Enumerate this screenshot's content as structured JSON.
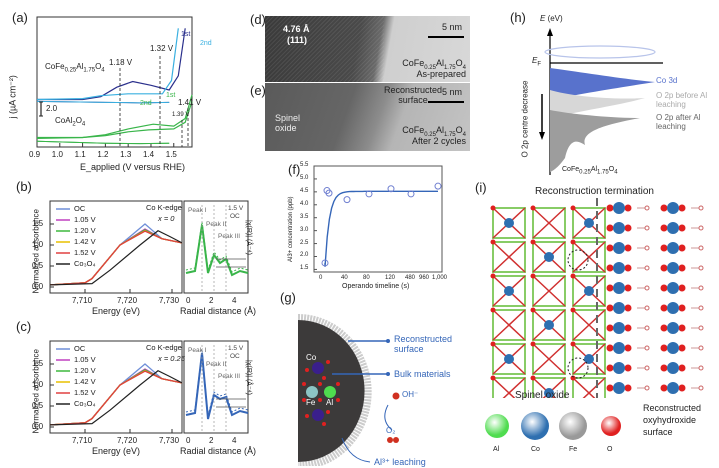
{
  "panels": {
    "a": {
      "label": "(a)",
      "ylabel": "j (µA cm⁻²)",
      "xlabel": "E_applied (V versus RHE)",
      "scale_bar": "2.0",
      "x_ticks": [
        "0.9",
        "1.0",
        "1.1",
        "1.2",
        "1.3",
        "1.4",
        "1.5"
      ],
      "sample_top": "CoFe0.25Al1.75O4",
      "sample_bottom": "CoAl2O4",
      "annotations": [
        "1.18 V",
        "1.32 V",
        "1.39 V",
        "1.41 V"
      ],
      "cycle_labels": [
        "1st",
        "2nd",
        "1st",
        "2nd"
      ]
    },
    "b": {
      "label": "(b)",
      "ylabel": "Normalized adsorbance",
      "xlabel": "Energy (eV)",
      "edge": "Co K-edge",
      "x_value": "x = 0",
      "legend": [
        "OC",
        "1.05 V",
        "1.20 V",
        "1.42 V",
        "1.52 V",
        "Co3O4"
      ],
      "y_ticks": [
        "0.0",
        "0.5",
        "1.0",
        "1.5"
      ],
      "x_ticks": [
        "7,710",
        "7,720",
        "7,730"
      ],
      "inset": {
        "legend": [
          "1.5 V",
          "OC"
        ],
        "peaks": [
          "Peak I",
          "Peak II",
          "Peak III"
        ],
        "xlabel": "Radial distance (Å)",
        "ylabel": "|χ(R)| (Å⁻⁴)",
        "x_ticks": [
          "0",
          "2",
          "4"
        ]
      }
    },
    "c": {
      "label": "(c)",
      "ylabel": "Normalized adsorbance",
      "xlabel": "Energy (eV)",
      "edge": "Co K-edge",
      "x_value": "x = 0.25",
      "legend": [
        "OC",
        "1.05 V",
        "1.20 V",
        "1.42 V",
        "1.52 V",
        "Co3O4"
      ],
      "y_ticks": [
        "0.0",
        "0.5",
        "1.0",
        "1.5"
      ],
      "x_ticks": [
        "7,710",
        "7,720",
        "7,730"
      ],
      "inset": {
        "legend": [
          "1.5 V",
          "OC"
        ],
        "peaks": [
          "Peak I",
          "Peak II",
          "Peak III"
        ],
        "xlabel": "Radial distance (Å)",
        "ylabel": "|χ(R)| (Å⁻⁴)",
        "x_ticks": [
          "0",
          "2",
          "4"
        ]
      }
    },
    "d": {
      "label": "(d)",
      "spacing": "4.76 Å",
      "plane": "(111)",
      "scale": "5 nm",
      "sample": "CoFe0.25Al1.75O4",
      "state": "As-prepared"
    },
    "e": {
      "label": "(e)",
      "region_a": "Spinel oxide",
      "region_b": "Reconstructed surface",
      "scale": "5 nm",
      "sample": "CoFe0.25Al1.75O4",
      "state": "After 2 cycles"
    },
    "g": {
      "label": "(g)",
      "callouts": [
        "Reconstructed surface",
        "Bulk materials",
        "OH⁻",
        "O₂",
        "Al³⁺ leaching"
      ],
      "atoms": [
        "Co",
        "Fe",
        "Al"
      ]
    },
    "h": {
      "label": "(h)",
      "yaxis": "E (eV)",
      "fermi": "E_F",
      "side_label": "O 2p centre decrease",
      "bands": [
        "Co 3d",
        "O 2p before Al leaching",
        "O 2p after Al leaching"
      ],
      "sample": "CoFe0.25Al1.75O4"
    },
    "i": {
      "label": "(i)",
      "title": "Reconstruction termination",
      "left": "Spinel oxide",
      "right": "Reconstructed oxyhydroxide surface",
      "legend": [
        "Al",
        "Co",
        "Fe",
        "O"
      ],
      "vacancy": "V"
    }
  },
  "colors": {
    "oc": "#6f8fd8",
    "v105": "#c040c0",
    "v120": "#3db83d",
    "v142": "#e8c000",
    "v152": "#e04040",
    "co3o4": "#222222",
    "navy": "#2a2f8c",
    "cyan": "#3ab0e0",
    "green": "#39b54a",
    "blue": "#3566b8"
  },
  "chart_data": [
    {
      "type": "line",
      "title": "(a) Cyclic voltammetry",
      "xlabel": "E_applied (V versus RHE)",
      "ylabel": "j (µA cm⁻²)",
      "xlim": [
        0.9,
        1.58
      ],
      "series": [
        {
          "name": "CoFe0.25Al1.75O4 1st",
          "x": [
            0.9,
            1.1,
            1.18,
            1.25,
            1.32,
            1.4,
            1.48,
            1.52,
            1.55
          ],
          "y": [
            5.0,
            5.0,
            5.3,
            6.3,
            6.9,
            6.5,
            6.0,
            7.5,
            12.5
          ]
        },
        {
          "name": "CoFe0.25Al1.75O4 2nd",
          "x": [
            0.9,
            1.1,
            1.18,
            1.3,
            1.45,
            1.49,
            1.52
          ],
          "y": [
            5.0,
            5.1,
            5.4,
            5.6,
            5.6,
            7.0,
            12.5
          ]
        },
        {
          "name": "CoAl2O4 1st",
          "x": [
            0.9,
            1.1,
            1.2,
            1.3,
            1.41,
            1.5,
            1.55,
            1.58
          ],
          "y": [
            1.0,
            1.0,
            1.3,
            1.9,
            2.4,
            2.2,
            3.0,
            5.5
          ]
        },
        {
          "name": "CoAl2O4 2nd",
          "x": [
            0.9,
            1.1,
            1.2,
            1.3,
            1.39,
            1.5,
            1.55,
            1.58
          ],
          "y": [
            0.9,
            1.0,
            1.2,
            1.6,
            1.8,
            1.9,
            2.6,
            4.8
          ]
        }
      ],
      "annotations": [
        "1.18 V",
        "1.32 V",
        "1.39 V",
        "1.41 V"
      ]
    },
    {
      "type": "line",
      "title": "(f) Al3+ concentration",
      "xlabel": "Operando timeline (s)",
      "ylabel": "Al3+ concentration (ppb)",
      "ylim": [
        1.4,
        5.5
      ],
      "x_ticks": [
        "0",
        "40",
        "80",
        "120",
        "480",
        "960",
        "1,000"
      ],
      "y_ticks": [
        "1.5",
        "2.0",
        "2.5",
        "3.0",
        "3.5",
        "4.0",
        "4.5",
        "5.0",
        "5.5"
      ],
      "series": [
        {
          "name": "measured",
          "x": [
            "0",
            "5",
            "10",
            "40",
            "80",
            "120",
            "480",
            "1,000"
          ],
          "y": [
            1.75,
            4.55,
            4.45,
            4.2,
            4.42,
            4.62,
            4.42,
            4.72
          ]
        }
      ],
      "fit": "exponential saturation to ~4.5"
    }
  ]
}
